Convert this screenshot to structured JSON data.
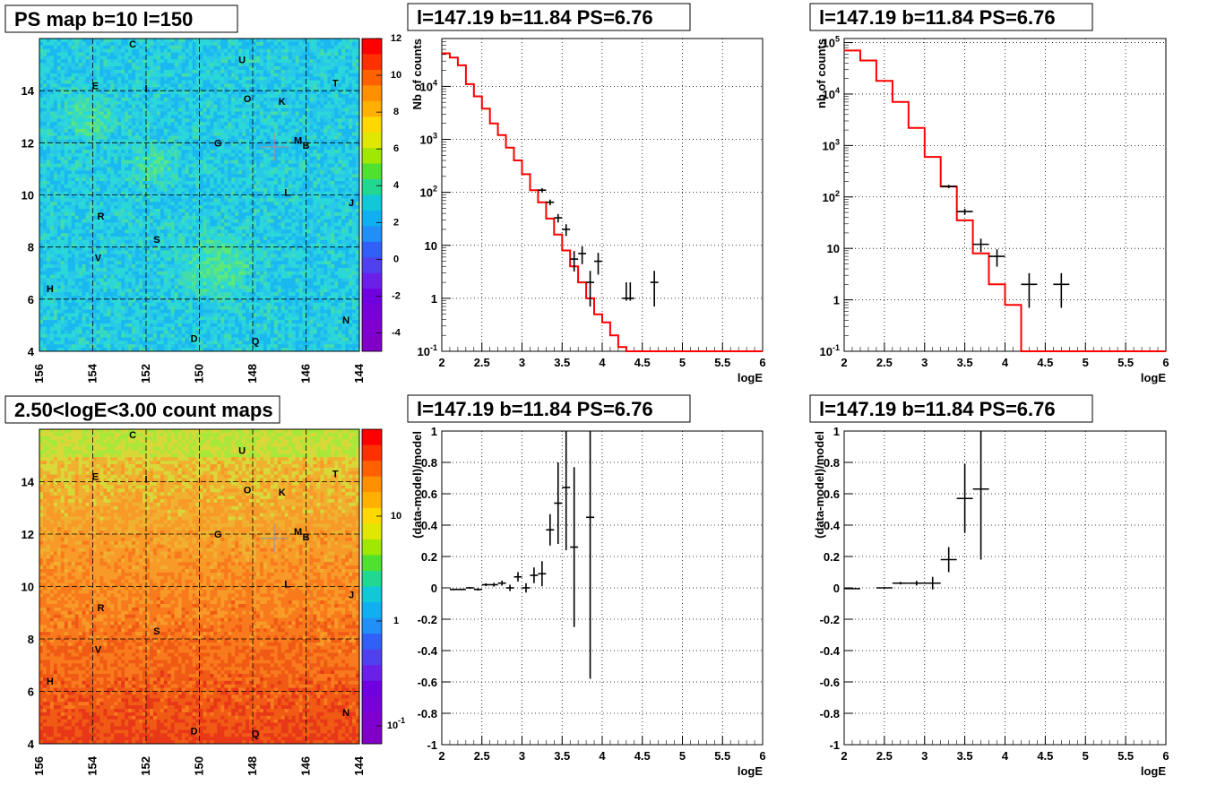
{
  "titles": {
    "ps_map": "PS map b=10 l=150",
    "spec1": "l=147.19 b=11.84 PS=6.76",
    "spec2": "l=147.19 b=11.84 PS=6.76",
    "count_map": "2.50<logE<3.00 count maps",
    "res1": "l=147.19 b=11.84 PS=6.76",
    "res2": "l=147.19 b=11.84 PS=6.76"
  },
  "colors": {
    "model_line": "#ff0000",
    "data_marker": "#000000"
  },
  "chart_data": [
    {
      "type": "heatmap",
      "title": "PS map b=10 l=150",
      "x_ticks": [
        "156",
        "154",
        "152",
        "150",
        "148",
        "146",
        "144"
      ],
      "y_ticks": [
        "4",
        "6",
        "8",
        "10",
        "12",
        "14"
      ],
      "xlim": [
        156,
        144
      ],
      "ylim": [
        4,
        16
      ],
      "colorbar_ticks": [
        "12",
        "10",
        "8",
        "6",
        "4",
        "2",
        "0",
        "-2",
        "-4"
      ],
      "colorbar_range": [
        -5,
        12
      ],
      "grid": true,
      "marker": {
        "l": 147.19,
        "b": 11.84
      },
      "sources": [
        {
          "name": "C",
          "l": 152.5,
          "b": 15.8
        },
        {
          "name": "U",
          "l": 148.4,
          "b": 15.2
        },
        {
          "name": "E",
          "l": 153.9,
          "b": 14.2
        },
        {
          "name": "I",
          "l": 152.0,
          "b": 14.1
        },
        {
          "name": "T",
          "l": 144.9,
          "b": 14.3
        },
        {
          "name": "O",
          "l": 148.2,
          "b": 13.7
        },
        {
          "name": "K",
          "l": 146.9,
          "b": 13.6
        },
        {
          "name": "G",
          "l": 149.3,
          "b": 12.0
        },
        {
          "name": "M",
          "l": 146.3,
          "b": 12.1
        },
        {
          "name": "B",
          "l": 146.0,
          "b": 11.9
        },
        {
          "name": "L",
          "l": 146.7,
          "b": 10.1
        },
        {
          "name": "J",
          "l": 144.3,
          "b": 9.7
        },
        {
          "name": "R",
          "l": 153.7,
          "b": 9.2
        },
        {
          "name": "S",
          "l": 151.6,
          "b": 8.3
        },
        {
          "name": "V",
          "l": 153.8,
          "b": 7.6
        },
        {
          "name": "H",
          "l": 155.6,
          "b": 6.4
        },
        {
          "name": "N",
          "l": 144.5,
          "b": 5.2
        },
        {
          "name": "D",
          "l": 150.2,
          "b": 4.5
        },
        {
          "name": "Q",
          "l": 147.9,
          "b": 4.4
        }
      ]
    },
    {
      "type": "line",
      "title": "l=147.19 b=11.84 PS=6.76",
      "xlabel": "logE",
      "ylabel": "Nb of counts",
      "xlim": [
        2,
        6
      ],
      "ylim": [
        0.1,
        80000
      ],
      "yscale": "log",
      "x_ticks": [
        "2",
        "2.5",
        "3",
        "3.5",
        "4",
        "4.5",
        "5",
        "5.5",
        "6"
      ],
      "y_ticks": [
        "10^{-1}",
        "1",
        "10",
        "10^{2}",
        "10^{3}",
        "10^{4}"
      ],
      "grid": true,
      "series": [
        {
          "role": "model",
          "bin_width": 0.1,
          "x": [
            2.0,
            2.1,
            2.2,
            2.3,
            2.4,
            2.5,
            2.6,
            2.7,
            2.8,
            2.9,
            3.0,
            3.1,
            3.2,
            3.3,
            3.4,
            3.5,
            3.6,
            3.7,
            3.8,
            3.9,
            4.0,
            4.1,
            4.2,
            4.3,
            4.4,
            4.5,
            4.6,
            4.7,
            4.8,
            4.9,
            5.0,
            5.1,
            5.2,
            5.3,
            5.4,
            5.5,
            5.6,
            5.7,
            5.8,
            5.9
          ],
          "y": [
            42000,
            35000,
            25000,
            11000,
            6500,
            3800,
            2000,
            1200,
            700,
            400,
            220,
            110,
            65,
            32,
            16,
            8,
            4,
            2,
            1,
            0.5,
            0.35,
            0.2,
            0.12,
            0.1,
            0.1,
            0.1,
            0.1,
            0.1,
            0.1,
            0.1,
            0.1,
            0.1,
            0.1,
            0.1,
            0.1,
            0.1,
            0.1,
            0.1,
            0.1,
            0.1
          ]
        },
        {
          "role": "data",
          "x": [
            3.25,
            3.35,
            3.45,
            3.55,
            3.65,
            3.75,
            3.85,
            3.95,
            4.3,
            4.35,
            4.65
          ],
          "y": [
            110,
            65,
            33,
            20,
            5.5,
            7,
            2,
            5,
            1,
            1,
            2
          ],
          "err_lo": [
            10,
            8,
            6,
            5,
            2.3,
            2.6,
            1.3,
            2.2,
            0.1,
            0.1,
            1.3
          ],
          "err_hi": [
            10,
            8,
            6,
            5,
            2.3,
            2.6,
            1.3,
            2.2,
            1.0,
            1.0,
            1.3
          ],
          "xerr": [
            0.05,
            0.05,
            0.05,
            0.05,
            0.05,
            0.05,
            0.05,
            0.05,
            0.05,
            0.05,
            0.05
          ]
        }
      ]
    },
    {
      "type": "line",
      "title": "l=147.19 b=11.84 PS=6.76",
      "xlabel": "logE",
      "ylabel": "nb of counts",
      "xlim": [
        2,
        6
      ],
      "ylim": [
        0.1,
        120000
      ],
      "yscale": "log",
      "x_ticks": [
        "2",
        "2.5",
        "3",
        "3.5",
        "4",
        "4.5",
        "5",
        "5.5",
        "6"
      ],
      "y_ticks": [
        "10^{-1}",
        "1",
        "10",
        "10^{2}",
        "10^{3}",
        "10^{4}",
        "10^{5}"
      ],
      "grid": true,
      "series": [
        {
          "role": "model",
          "bin_width": 0.2,
          "x": [
            2.0,
            2.2,
            2.4,
            2.6,
            2.8,
            3.0,
            3.2,
            3.4,
            3.6,
            3.8,
            4.0,
            4.2,
            4.4,
            4.6,
            4.8,
            5.0,
            5.2,
            5.4,
            5.6,
            5.8
          ],
          "y": [
            70000,
            45000,
            18000,
            7000,
            2200,
            600,
            160,
            35,
            8,
            2,
            0.8,
            0.1,
            0.1,
            0.1,
            0.1,
            0.1,
            0.1,
            0.1,
            0.1,
            0.1
          ]
        },
        {
          "role": "data",
          "x": [
            3.3,
            3.5,
            3.7,
            3.9,
            4.3,
            4.7
          ],
          "y": [
            160,
            52,
            12,
            7,
            2,
            2
          ],
          "err_lo": [
            12,
            7,
            3.5,
            2.6,
            1.3,
            1.3
          ],
          "err_hi": [
            12,
            7,
            3.5,
            2.6,
            1.3,
            1.3
          ],
          "xerr": [
            0.1,
            0.1,
            0.1,
            0.1,
            0.1,
            0.1
          ]
        }
      ]
    },
    {
      "type": "heatmap",
      "title": "2.50<logE<3.00 count maps",
      "x_ticks": [
        "156",
        "154",
        "152",
        "150",
        "148",
        "146",
        "144"
      ],
      "y_ticks": [
        "4",
        "6",
        "8",
        "10",
        "12",
        "14"
      ],
      "xlim": [
        156,
        144
      ],
      "ylim": [
        4,
        16
      ],
      "colorbar_scale": "log",
      "colorbar_ticks": [
        "10",
        "1",
        "10^{-1}"
      ],
      "colorbar_range": [
        0.06,
        40
      ],
      "grid": true,
      "marker": {
        "l": 147.19,
        "b": 11.84
      },
      "sources": [
        {
          "name": "C",
          "l": 152.5,
          "b": 15.8
        },
        {
          "name": "U",
          "l": 148.4,
          "b": 15.2
        },
        {
          "name": "E",
          "l": 153.9,
          "b": 14.2
        },
        {
          "name": "I",
          "l": 152.0,
          "b": 14.1
        },
        {
          "name": "T",
          "l": 144.9,
          "b": 14.3
        },
        {
          "name": "O",
          "l": 148.2,
          "b": 13.7
        },
        {
          "name": "K",
          "l": 146.9,
          "b": 13.6
        },
        {
          "name": "G",
          "l": 149.3,
          "b": 12.0
        },
        {
          "name": "M",
          "l": 146.3,
          "b": 12.1
        },
        {
          "name": "B",
          "l": 146.0,
          "b": 11.9
        },
        {
          "name": "L",
          "l": 146.7,
          "b": 10.1
        },
        {
          "name": "J",
          "l": 144.3,
          "b": 9.7
        },
        {
          "name": "R",
          "l": 153.7,
          "b": 9.2
        },
        {
          "name": "S",
          "l": 151.6,
          "b": 8.3
        },
        {
          "name": "V",
          "l": 153.8,
          "b": 7.6
        },
        {
          "name": "H",
          "l": 155.6,
          "b": 6.4
        },
        {
          "name": "N",
          "l": 144.5,
          "b": 5.2
        },
        {
          "name": "D",
          "l": 150.2,
          "b": 4.5
        },
        {
          "name": "Q",
          "l": 147.9,
          "b": 4.4
        }
      ]
    },
    {
      "type": "scatter",
      "title": "l=147.19 b=11.84 PS=6.76",
      "xlabel": "logE",
      "ylabel": "(data-model)/model",
      "xlim": [
        2,
        6
      ],
      "ylim": [
        -1,
        1
      ],
      "x_ticks": [
        "2",
        "2.5",
        "3",
        "3.5",
        "4",
        "4.5",
        "5",
        "5.5",
        "6"
      ],
      "y_ticks": [
        "-1",
        "-0.8",
        "-0.6",
        "-0.4",
        "-0.2",
        "0",
        "0.2",
        "0.4",
        "0.6",
        "0.8",
        "1"
      ],
      "grid": true,
      "series": [
        {
          "role": "data",
          "x": [
            2.15,
            2.25,
            2.35,
            2.45,
            2.55,
            2.65,
            2.75,
            2.85,
            2.95,
            3.05,
            3.15,
            3.25,
            3.35,
            3.45,
            3.55,
            3.65,
            3.85
          ],
          "y": [
            -0.01,
            -0.01,
            0.0,
            -0.01,
            0.02,
            0.02,
            0.03,
            0.0,
            0.07,
            0.0,
            0.08,
            0.09,
            0.37,
            0.54,
            0.64,
            0.26,
            0.45
          ],
          "err_lo": [
            0.005,
            0.005,
            0.006,
            0.007,
            0.009,
            0.012,
            0.016,
            0.02,
            0.03,
            0.03,
            0.05,
            0.08,
            0.1,
            0.26,
            0.4,
            0.51,
            1.03
          ],
          "err_hi": [
            0.005,
            0.005,
            0.006,
            0.007,
            0.009,
            0.012,
            0.016,
            0.02,
            0.03,
            0.03,
            0.05,
            0.08,
            0.1,
            0.26,
            0.4,
            0.51,
            1.03
          ],
          "xerr": [
            0.05,
            0.05,
            0.05,
            0.05,
            0.05,
            0.05,
            0.05,
            0.05,
            0.05,
            0.05,
            0.05,
            0.05,
            0.05,
            0.05,
            0.05,
            0.05,
            0.05
          ]
        }
      ]
    },
    {
      "type": "scatter",
      "title": "l=147.19 b=11.84 PS=6.76",
      "xlabel": "logE",
      "ylabel": "(data-model)/model",
      "xlim": [
        2,
        6
      ],
      "ylim": [
        -1,
        1
      ],
      "x_ticks": [
        "2",
        "2.5",
        "3",
        "3.5",
        "4",
        "4.5",
        "5",
        "5.5",
        "6"
      ],
      "y_ticks": [
        "-1",
        "-0.8",
        "-0.6",
        "-0.4",
        "-0.2",
        "0",
        "0.2",
        "0.4",
        "0.6",
        "0.8",
        "1"
      ],
      "grid": true,
      "series": [
        {
          "role": "data",
          "x": [
            2.1,
            2.5,
            2.7,
            2.9,
            3.1,
            3.3,
            3.5,
            3.7
          ],
          "y": [
            -0.005,
            0.0,
            0.03,
            0.03,
            0.03,
            0.18,
            0.57,
            0.63
          ],
          "err_lo": [
            0.004,
            0.005,
            0.008,
            0.015,
            0.04,
            0.08,
            0.22,
            0.45
          ],
          "err_hi": [
            0.004,
            0.005,
            0.008,
            0.015,
            0.04,
            0.08,
            0.22,
            0.45
          ],
          "xerr": [
            0.1,
            0.1,
            0.1,
            0.1,
            0.1,
            0.1,
            0.1,
            0.1
          ]
        }
      ]
    }
  ]
}
